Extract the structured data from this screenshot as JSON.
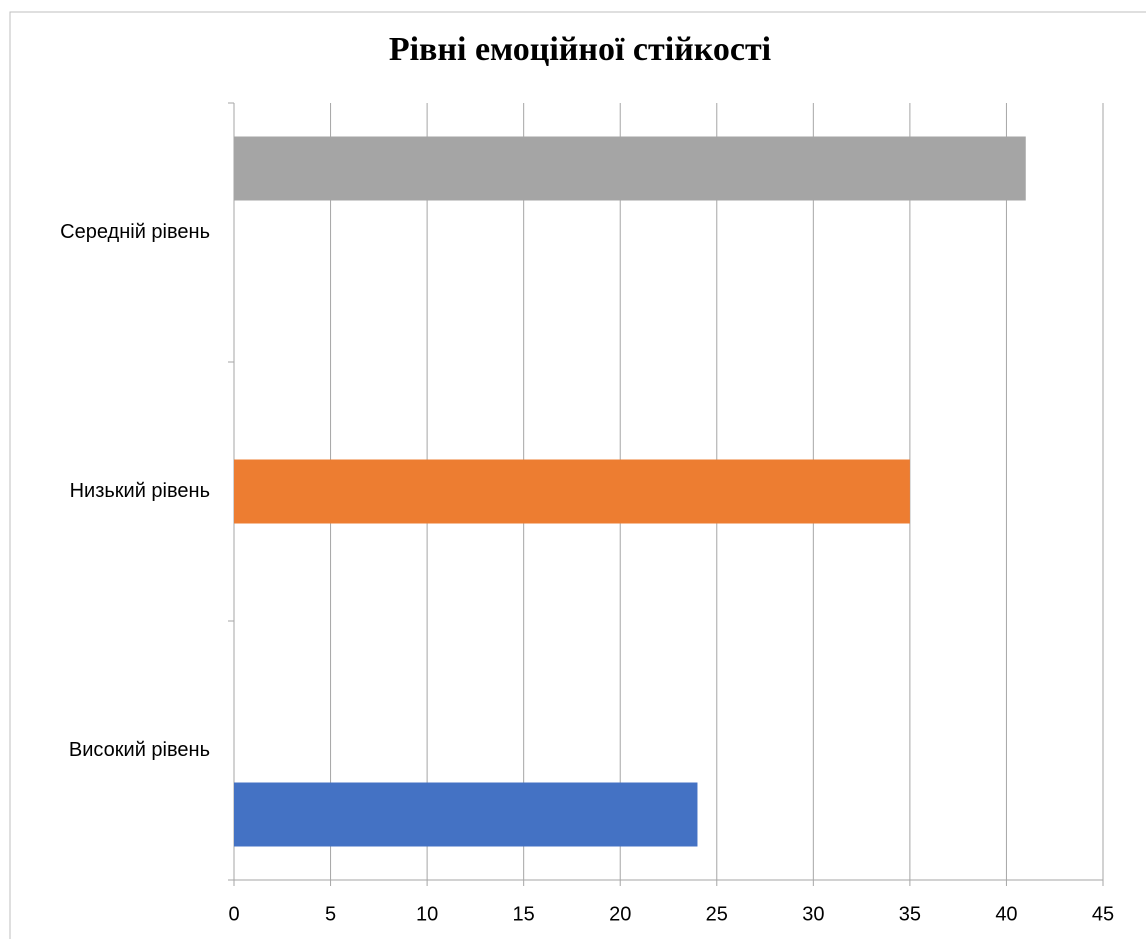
{
  "chart_data": {
    "type": "bar",
    "orientation": "horizontal",
    "title": "Рівні  емоційної стійкості",
    "categories": [
      "Високий рівень",
      "Низький рівень",
      "Середній рівень"
    ],
    "series": [
      {
        "color": "#4472c4",
        "values": [
          24,
          null,
          null
        ]
      },
      {
        "color": "#ed7d31",
        "values": [
          null,
          35,
          null
        ]
      },
      {
        "color": "#a5a5a5",
        "values": [
          null,
          null,
          41
        ]
      }
    ],
    "xlim": [
      0,
      45
    ],
    "xticks": [
      0,
      5,
      10,
      15,
      20,
      25,
      30,
      35,
      40,
      45
    ],
    "grid": true
  }
}
